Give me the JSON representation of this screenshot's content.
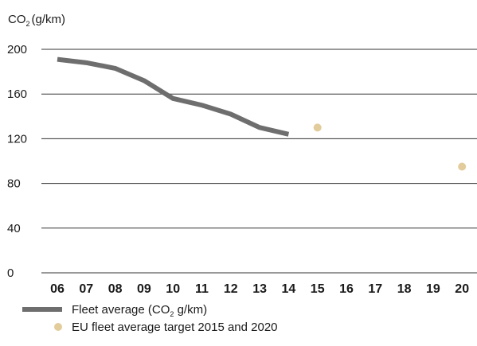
{
  "chart_data": {
    "type": "line",
    "y_unit_label": "CO",
    "y_unit_sub": "2",
    "y_unit_rest": "(g/km)",
    "yticks": [
      0,
      40,
      80,
      120,
      160,
      200
    ],
    "ylim": [
      0,
      200
    ],
    "categories": [
      "06",
      "07",
      "08",
      "09",
      "10",
      "11",
      "12",
      "13",
      "14",
      "15",
      "16",
      "17",
      "18",
      "19",
      "20"
    ],
    "series": [
      {
        "name": "Fleet average (CO2 g/km)",
        "kind": "line",
        "color": "#6e6e6e",
        "points": [
          {
            "x": "06",
            "y": 191
          },
          {
            "x": "07",
            "y": 188
          },
          {
            "x": "08",
            "y": 183
          },
          {
            "x": "09",
            "y": 172
          },
          {
            "x": "10",
            "y": 156
          },
          {
            "x": "11",
            "y": 150
          },
          {
            "x": "12",
            "y": 142
          },
          {
            "x": "13",
            "y": 130
          },
          {
            "x": "14",
            "y": 124
          }
        ]
      },
      {
        "name": "EU fleet average target 2015 and 2020",
        "kind": "points",
        "color": "#e3cc9c",
        "points": [
          {
            "x": "15",
            "y": 130
          },
          {
            "x": "20",
            "y": 95
          }
        ]
      }
    ],
    "legend": [
      {
        "pre": "Fleet average (CO",
        "sub": "2",
        "post": " g/km)",
        "marker": "line",
        "color": "#6e6e6e"
      },
      {
        "pre": "EU fleet average target 2015 and 2020",
        "sub": "",
        "post": "",
        "marker": "dot",
        "color": "#e3cc9c"
      }
    ],
    "grid": "horizontal",
    "legend_position": "bottom-left"
  }
}
